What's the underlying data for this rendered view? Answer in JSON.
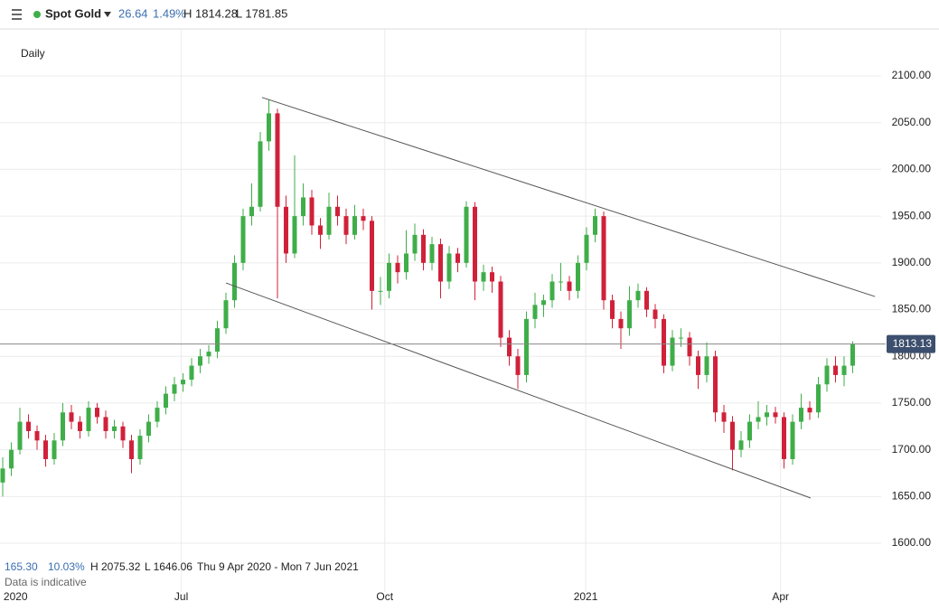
{
  "header": {
    "symbol": "Spot Gold",
    "change": "26.64",
    "change_pct": "1.49%",
    "high": "H 1814.28",
    "low": "L 1781.85"
  },
  "footer": {
    "range": "165.30",
    "range_pct": "10.03%",
    "high": "H 2075.32",
    "low": "L 1646.06",
    "period": "Thu 9 Apr 2020 - Mon 7 Jun 2021",
    "note": "Data is indicative"
  },
  "chart_data": {
    "type": "candlestick",
    "title": "Daily",
    "up_color": "#3fae49",
    "down_color": "#d0213a",
    "grid": true,
    "ylim": [
      1586.5,
      2150.3
    ],
    "yticks": [
      {
        "value": 1600,
        "label": "1600.00"
      },
      {
        "value": 1650,
        "label": "1650.00"
      },
      {
        "value": 1700,
        "label": "1700.00"
      },
      {
        "value": 1750,
        "label": "1750.00"
      },
      {
        "value": 1800,
        "label": "1800.00"
      },
      {
        "value": 1850,
        "label": "1850.00"
      },
      {
        "value": 1900,
        "label": "1900.00"
      },
      {
        "value": 1950,
        "label": "1950.00"
      },
      {
        "value": 2000,
        "label": "2000.00"
      },
      {
        "value": 2050,
        "label": "2050.00"
      },
      {
        "value": 2100,
        "label": "2100.00"
      }
    ],
    "xticks": [
      {
        "value": 1.5,
        "label": "2020"
      },
      {
        "value": 20.8,
        "label": "Jul"
      },
      {
        "value": 44.5,
        "label": "Oct"
      },
      {
        "value": 67.9,
        "label": "2021"
      },
      {
        "value": 90.6,
        "label": "Apr"
      }
    ],
    "last_price": {
      "value": 1813.13,
      "label": "1813.13"
    },
    "trendlines": [
      {
        "x": [
          30.2,
          101.6
        ],
        "y": [
          2077,
          1864
        ]
      },
      {
        "x": [
          26,
          94.1
        ],
        "y": [
          1878.5,
          1648.4
        ]
      }
    ],
    "candles": [
      [
        1665,
        1692,
        1650,
        1680
      ],
      [
        1680,
        1708,
        1672,
        1700
      ],
      [
        1700,
        1745,
        1695,
        1730
      ],
      [
        1730,
        1738,
        1712,
        1720
      ],
      [
        1720,
        1726,
        1700,
        1710
      ],
      [
        1710,
        1716,
        1682,
        1690
      ],
      [
        1690,
        1718,
        1684,
        1710
      ],
      [
        1710,
        1750,
        1704,
        1740
      ],
      [
        1740,
        1748,
        1722,
        1730
      ],
      [
        1730,
        1736,
        1712,
        1720
      ],
      [
        1720,
        1752,
        1714,
        1745
      ],
      [
        1745,
        1750,
        1728,
        1735
      ],
      [
        1735,
        1742,
        1712,
        1720
      ],
      [
        1720,
        1732,
        1712,
        1725
      ],
      [
        1725,
        1730,
        1702,
        1710
      ],
      [
        1710,
        1716,
        1675,
        1690
      ],
      [
        1690,
        1722,
        1684,
        1715
      ],
      [
        1715,
        1738,
        1708,
        1730
      ],
      [
        1730,
        1752,
        1724,
        1745
      ],
      [
        1745,
        1768,
        1738,
        1760
      ],
      [
        1760,
        1778,
        1752,
        1770
      ],
      [
        1770,
        1782,
        1762,
        1775
      ],
      [
        1775,
        1798,
        1768,
        1790
      ],
      [
        1790,
        1808,
        1782,
        1800
      ],
      [
        1800,
        1812,
        1792,
        1805
      ],
      [
        1805,
        1838,
        1798,
        1830
      ],
      [
        1830,
        1868,
        1824,
        1860
      ],
      [
        1860,
        1908,
        1852,
        1900
      ],
      [
        1900,
        1958,
        1892,
        1950
      ],
      [
        1950,
        1985,
        1940,
        1960
      ],
      [
        1960,
        2040,
        1955,
        2030
      ],
      [
        2030,
        2075,
        2020,
        2060
      ],
      [
        2060,
        2065,
        1862,
        1960
      ],
      [
        1960,
        1972,
        1900,
        1910
      ],
      [
        1910,
        2015,
        1905,
        1950
      ],
      [
        1950,
        1985,
        1940,
        1970
      ],
      [
        1970,
        1978,
        1930,
        1940
      ],
      [
        1940,
        1948,
        1915,
        1930
      ],
      [
        1930,
        1975,
        1925,
        1960
      ],
      [
        1960,
        1972,
        1940,
        1950
      ],
      [
        1950,
        1958,
        1920,
        1930
      ],
      [
        1930,
        1962,
        1925,
        1950
      ],
      [
        1950,
        1958,
        1935,
        1945
      ],
      [
        1945,
        1950,
        1850,
        1870
      ],
      [
        1870,
        1885,
        1855,
        1870
      ],
      [
        1870,
        1910,
        1862,
        1900
      ],
      [
        1900,
        1908,
        1878,
        1890
      ],
      [
        1890,
        1935,
        1882,
        1910
      ],
      [
        1910,
        1942,
        1902,
        1930
      ],
      [
        1930,
        1936,
        1892,
        1900
      ],
      [
        1900,
        1928,
        1892,
        1920
      ],
      [
        1920,
        1926,
        1862,
        1880
      ],
      [
        1880,
        1918,
        1872,
        1910
      ],
      [
        1910,
        1916,
        1890,
        1900
      ],
      [
        1900,
        1966,
        1895,
        1960
      ],
      [
        1960,
        1965,
        1860,
        1880
      ],
      [
        1880,
        1898,
        1870,
        1890
      ],
      [
        1890,
        1896,
        1868,
        1880
      ],
      [
        1880,
        1886,
        1810,
        1820
      ],
      [
        1820,
        1828,
        1790,
        1800
      ],
      [
        1800,
        1808,
        1765,
        1780
      ],
      [
        1780,
        1848,
        1772,
        1840
      ],
      [
        1840,
        1868,
        1830,
        1855
      ],
      [
        1855,
        1866,
        1842,
        1860
      ],
      [
        1860,
        1888,
        1852,
        1880
      ],
      [
        1880,
        1900,
        1870,
        1880
      ],
      [
        1880,
        1886,
        1860,
        1870
      ],
      [
        1870,
        1908,
        1862,
        1900
      ],
      [
        1900,
        1938,
        1892,
        1930
      ],
      [
        1930,
        1958,
        1922,
        1950
      ],
      [
        1950,
        1955,
        1850,
        1860
      ],
      [
        1860,
        1866,
        1830,
        1840
      ],
      [
        1840,
        1848,
        1808,
        1830
      ],
      [
        1830,
        1875,
        1822,
        1860
      ],
      [
        1860,
        1878,
        1852,
        1870
      ],
      [
        1870,
        1874,
        1842,
        1850
      ],
      [
        1850,
        1856,
        1830,
        1840
      ],
      [
        1840,
        1845,
        1782,
        1790
      ],
      [
        1790,
        1828,
        1784,
        1820
      ],
      [
        1820,
        1830,
        1810,
        1820
      ],
      [
        1820,
        1826,
        1790,
        1800
      ],
      [
        1800,
        1806,
        1765,
        1780
      ],
      [
        1780,
        1815,
        1772,
        1800
      ],
      [
        1800,
        1806,
        1730,
        1740
      ],
      [
        1740,
        1748,
        1718,
        1730
      ],
      [
        1730,
        1736,
        1678,
        1700
      ],
      [
        1700,
        1720,
        1692,
        1710
      ],
      [
        1710,
        1738,
        1702,
        1730
      ],
      [
        1730,
        1752,
        1722,
        1735
      ],
      [
        1735,
        1748,
        1726,
        1740
      ],
      [
        1740,
        1746,
        1728,
        1735
      ],
      [
        1735,
        1740,
        1680,
        1690
      ],
      [
        1690,
        1738,
        1684,
        1730
      ],
      [
        1730,
        1760,
        1722,
        1745
      ],
      [
        1745,
        1752,
        1732,
        1740
      ],
      [
        1740,
        1778,
        1734,
        1770
      ],
      [
        1770,
        1798,
        1762,
        1790
      ],
      [
        1790,
        1800,
        1772,
        1780
      ],
      [
        1780,
        1800,
        1768,
        1790
      ],
      [
        1790,
        1816,
        1782,
        1813.13
      ]
    ]
  }
}
